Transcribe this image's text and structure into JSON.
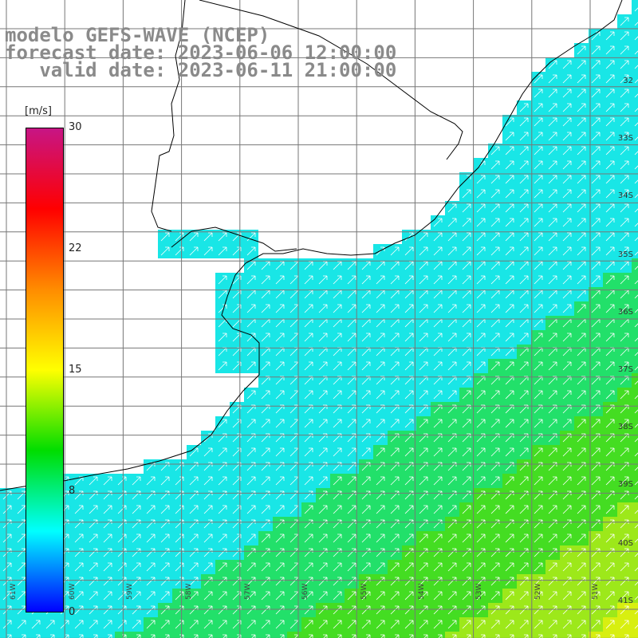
{
  "title": {
    "line1": "modelo GEFS-WAVE (NCEP)",
    "line2": "forecast date: 2023-06-06 12:00:00",
    "line3": "   valid date: 2023-06-11 21:00:00"
  },
  "legend": {
    "unit": "[m/s]",
    "labels": [
      "30",
      "22",
      "15",
      "8",
      "0"
    ],
    "colors": [
      "#c71585",
      "#ff0000",
      "#ff8c00",
      "#ffff00",
      "#00dd00",
      "#00ffff",
      "#0000ff"
    ]
  },
  "latitude_labels": [
    "32",
    "33S",
    "34S",
    "35S",
    "36S",
    "37S",
    "38S",
    "39S",
    "40S",
    "41S"
  ],
  "longitude_labels": [
    "61W",
    "60W",
    "59W",
    "58W",
    "57W",
    "56W",
    "55W",
    "54W",
    "53W",
    "52W",
    "51W"
  ],
  "field": {
    "variable": "wind speed and direction",
    "direction_to": "north-east",
    "min_speed_ms": 8,
    "max_speed_ms": 16
  }
}
